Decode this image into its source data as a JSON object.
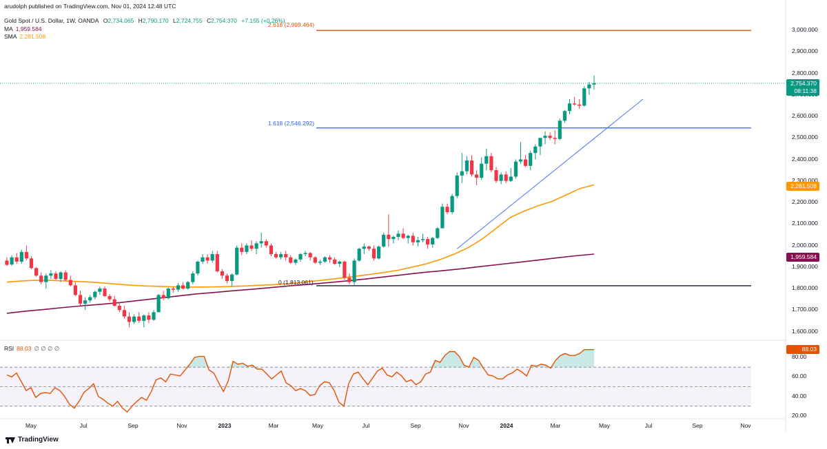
{
  "publisher": "arudolph published on TradingView.com, Nov 01, 2024 12:48 UTC",
  "symbol": {
    "name": "Gold Spot / U.S. Dollar, 1W, OANDA",
    "open_label": "O",
    "open": "2,734.065",
    "high_label": "H",
    "high": "2,790.170",
    "low_label": "L",
    "low": "2,724.755",
    "close_label": "C",
    "close": "2,754.370",
    "change": "+7.155 (+0.26%)"
  },
  "indicators": {
    "ma_label": "MA",
    "ma_value": "1,959.584",
    "sma_label": "SMA",
    "sma_value": "2,281.508",
    "rsi_label": "RSI",
    "rsi_value": "88.03",
    "rsi_extra": "∅ ∅ ∅ ∅"
  },
  "fib_levels": [
    {
      "label": "2.618 (2,999.464)",
      "value": 2999.464
    },
    {
      "label": "1.618 (2,546.292)",
      "value": 2546.292
    },
    {
      "label": "0 (1,813.061)",
      "value": 1813.061
    }
  ],
  "price_tags": {
    "last_price": "2,754.370",
    "countdown": "08:11:38",
    "sma": "2,281.508",
    "ma": "1,959.584",
    "rsi": "88.03"
  },
  "y_ticks": [
    "3,000.000",
    "2,900.000",
    "2,800.000",
    "2,700.000",
    "2,600.000",
    "2,500.000",
    "2,400.000",
    "2,300.000",
    "2,200.000",
    "2,100.000",
    "2,000.000",
    "1,900.000",
    "1,800.000",
    "1,700.000",
    "1,600.000"
  ],
  "rsi_ticks": [
    "80.00",
    "60.00",
    "40.00",
    "20.00"
  ],
  "x_ticks": [
    "May",
    "Jul",
    "Sep",
    "Nov",
    "2023",
    "Mar",
    "May",
    "Jul",
    "Sep",
    "Nov",
    "2024",
    "Mar",
    "May",
    "Jul",
    "Sep",
    "Nov"
  ],
  "footer": "TradingView",
  "colors": {
    "bull": "#089981",
    "bear": "#f23645",
    "ma200": "#880e4f",
    "sma50": "#ff9800",
    "fib_top": "#e65100",
    "fib_mid": "#2962ff",
    "fib_zero": "#131722",
    "rsi": "#e65100",
    "trendline": "#5c7cfa",
    "last_price": "#089981"
  },
  "chart_data": {
    "type": "candlestick",
    "timeframe": "1W",
    "ylim": [
      1580,
      3060
    ],
    "candles_ohlc": [
      [
        1930,
        1945,
        1905,
        1910
      ],
      [
        1912,
        1955,
        1905,
        1945
      ],
      [
        1945,
        1965,
        1915,
        1925
      ],
      [
        1925,
        1980,
        1915,
        1970
      ],
      [
        1970,
        2000,
        1930,
        1940
      ],
      [
        1940,
        1950,
        1890,
        1895
      ],
      [
        1895,
        1900,
        1855,
        1860
      ],
      [
        1860,
        1875,
        1820,
        1830
      ],
      [
        1830,
        1870,
        1800,
        1860
      ],
      [
        1860,
        1885,
        1845,
        1870
      ],
      [
        1870,
        1880,
        1840,
        1845
      ],
      [
        1845,
        1880,
        1830,
        1875
      ],
      [
        1875,
        1885,
        1835,
        1840
      ],
      [
        1840,
        1860,
        1810,
        1815
      ],
      [
        1815,
        1830,
        1765,
        1770
      ],
      [
        1770,
        1790,
        1720,
        1730
      ],
      [
        1730,
        1760,
        1700,
        1745
      ],
      [
        1745,
        1770,
        1735,
        1760
      ],
      [
        1760,
        1790,
        1750,
        1785
      ],
      [
        1785,
        1810,
        1770,
        1800
      ],
      [
        1800,
        1810,
        1760,
        1765
      ],
      [
        1765,
        1775,
        1740,
        1750
      ],
      [
        1750,
        1765,
        1715,
        1720
      ],
      [
        1720,
        1735,
        1690,
        1700
      ],
      [
        1700,
        1720,
        1660,
        1670
      ],
      [
        1670,
        1690,
        1620,
        1645
      ],
      [
        1645,
        1680,
        1635,
        1670
      ],
      [
        1670,
        1690,
        1640,
        1650
      ],
      [
        1650,
        1680,
        1620,
        1675
      ],
      [
        1675,
        1690,
        1640,
        1655
      ],
      [
        1655,
        1700,
        1650,
        1690
      ],
      [
        1690,
        1775,
        1690,
        1770
      ],
      [
        1770,
        1790,
        1745,
        1755
      ],
      [
        1755,
        1805,
        1750,
        1800
      ],
      [
        1800,
        1810,
        1780,
        1795
      ],
      [
        1795,
        1825,
        1785,
        1815
      ],
      [
        1815,
        1830,
        1795,
        1800
      ],
      [
        1800,
        1835,
        1795,
        1830
      ],
      [
        1830,
        1880,
        1820,
        1870
      ],
      [
        1870,
        1930,
        1860,
        1925
      ],
      [
        1925,
        1960,
        1915,
        1945
      ],
      [
        1945,
        1960,
        1915,
        1930
      ],
      [
        1930,
        1975,
        1920,
        1960
      ],
      [
        1960,
        1975,
        1875,
        1880
      ],
      [
        1880,
        1890,
        1845,
        1860
      ],
      [
        1860,
        1870,
        1825,
        1835
      ],
      [
        1835,
        1870,
        1810,
        1865
      ],
      [
        1865,
        2000,
        1860,
        1990
      ],
      [
        1990,
        2010,
        1955,
        1970
      ],
      [
        1970,
        2010,
        1960,
        2000
      ],
      [
        2000,
        2025,
        1975,
        1985
      ],
      [
        1985,
        2020,
        1960,
        2010
      ],
      [
        2010,
        2060,
        1990,
        2020
      ],
      [
        2020,
        2030,
        1990,
        2000
      ],
      [
        2000,
        2010,
        1950,
        1960
      ],
      [
        1960,
        1970,
        1940,
        1945
      ],
      [
        1945,
        1970,
        1935,
        1960
      ],
      [
        1960,
        1975,
        1930,
        1945
      ],
      [
        1945,
        1955,
        1915,
        1920
      ],
      [
        1920,
        1940,
        1910,
        1935
      ],
      [
        1935,
        1965,
        1925,
        1960
      ],
      [
        1960,
        1975,
        1950,
        1965
      ],
      [
        1965,
        1970,
        1930,
        1945
      ],
      [
        1945,
        1950,
        1915,
        1920
      ],
      [
        1920,
        1935,
        1910,
        1925
      ],
      [
        1925,
        1950,
        1920,
        1945
      ],
      [
        1945,
        1955,
        1920,
        1935
      ],
      [
        1935,
        1945,
        1910,
        1915
      ],
      [
        1915,
        1930,
        1900,
        1925
      ],
      [
        1925,
        1930,
        1840,
        1850
      ],
      [
        1850,
        1870,
        1820,
        1830
      ],
      [
        1830,
        1940,
        1810,
        1930
      ],
      [
        1930,
        1990,
        1925,
        1985
      ],
      [
        1985,
        2010,
        1960,
        1995
      ],
      [
        1995,
        2000,
        1975,
        1985
      ],
      [
        1985,
        2000,
        1930,
        1940
      ],
      [
        1940,
        2000,
        1935,
        1995
      ],
      [
        1995,
        2060,
        1990,
        2050
      ],
      [
        2050,
        2145,
        1995,
        2030
      ],
      [
        2030,
        2045,
        2010,
        2040
      ],
      [
        2040,
        2070,
        2025,
        2055
      ],
      [
        2055,
        2080,
        2030,
        2035
      ],
      [
        2035,
        2050,
        2010,
        2045
      ],
      [
        2045,
        2060,
        2000,
        2015
      ],
      [
        2015,
        2040,
        1995,
        2025
      ],
      [
        2025,
        2055,
        2015,
        2030
      ],
      [
        2030,
        2040,
        1985,
        2005
      ],
      [
        2005,
        2040,
        1990,
        2035
      ],
      [
        2035,
        2085,
        2030,
        2080
      ],
      [
        2080,
        2195,
        2080,
        2180
      ],
      [
        2180,
        2195,
        2145,
        2155
      ],
      [
        2155,
        2240,
        2145,
        2230
      ],
      [
        2230,
        2340,
        2220,
        2325
      ],
      [
        2325,
        2430,
        2290,
        2345
      ],
      [
        2345,
        2415,
        2330,
        2395
      ],
      [
        2395,
        2420,
        2320,
        2330
      ],
      [
        2330,
        2350,
        2280,
        2315
      ],
      [
        2315,
        2410,
        2305,
        2380
      ],
      [
        2380,
        2450,
        2350,
        2415
      ],
      [
        2415,
        2430,
        2340,
        2350
      ],
      [
        2350,
        2365,
        2290,
        2300
      ],
      [
        2300,
        2340,
        2285,
        2330
      ],
      [
        2330,
        2345,
        2290,
        2300
      ],
      [
        2300,
        2360,
        2295,
        2320
      ],
      [
        2320,
        2400,
        2310,
        2390
      ],
      [
        2390,
        2480,
        2380,
        2400
      ],
      [
        2400,
        2420,
        2365,
        2370
      ],
      [
        2370,
        2440,
        2350,
        2430
      ],
      [
        2430,
        2470,
        2400,
        2460
      ],
      [
        2460,
        2500,
        2420,
        2500
      ],
      [
        2500,
        2530,
        2470,
        2510
      ],
      [
        2510,
        2525,
        2490,
        2500
      ],
      [
        2500,
        2535,
        2470,
        2495
      ],
      [
        2495,
        2590,
        2490,
        2580
      ],
      [
        2580,
        2630,
        2570,
        2625
      ],
      [
        2625,
        2680,
        2610,
        2660
      ],
      [
        2660,
        2690,
        2650,
        2655
      ],
      [
        2655,
        2680,
        2635,
        2650
      ],
      [
        2650,
        2740,
        2645,
        2730
      ],
      [
        2730,
        2760,
        2700,
        2748
      ],
      [
        2748,
        2790,
        2724,
        2754
      ]
    ],
    "sma_50": [
      1830,
      1835,
      1838,
      1838,
      1836,
      1833,
      1830,
      1825,
      1820,
      1815,
      1812,
      1810,
      1808,
      1806,
      1807,
      1808,
      1810,
      1812,
      1815,
      1818,
      1822,
      1828,
      1835,
      1842,
      1850,
      1858,
      1866,
      1875,
      1885,
      1900,
      1915,
      1935,
      1960,
      1990,
      2030,
      2080,
      2130,
      2160,
      2185,
      2205,
      2235,
      2265,
      2282
    ],
    "ma_200": [
      1685,
      1695,
      1703,
      1712,
      1720,
      1727,
      1735,
      1745,
      1755,
      1765,
      1775,
      1782,
      1790,
      1797,
      1805,
      1813,
      1820,
      1828,
      1836,
      1845,
      1855,
      1865,
      1875,
      1883,
      1892,
      1902,
      1912,
      1922,
      1932,
      1942,
      1952,
      1960
    ],
    "rsi": [
      62,
      60,
      64,
      55,
      46,
      49,
      39,
      43,
      44,
      43,
      49,
      46,
      40,
      32,
      28,
      35,
      44,
      48,
      53,
      40,
      37,
      33,
      30,
      35,
      28,
      24,
      30,
      35,
      39,
      36,
      45,
      57,
      59,
      55,
      63,
      62,
      61,
      67,
      73,
      80,
      81,
      81,
      67,
      64,
      54,
      45,
      56,
      76,
      73,
      74,
      71,
      72,
      68,
      68,
      63,
      58,
      62,
      66,
      54,
      51,
      46,
      48,
      46,
      41,
      42,
      51,
      55,
      54,
      46,
      34,
      30,
      53,
      63,
      65,
      58,
      52,
      59,
      66,
      69,
      62,
      60,
      65,
      61,
      55,
      57,
      52,
      55,
      63,
      65,
      77,
      75,
      82,
      86,
      86,
      81,
      72,
      70,
      80,
      77,
      69,
      62,
      61,
      58,
      58,
      62,
      64,
      68,
      65,
      61,
      72,
      71,
      73,
      72,
      69,
      77,
      82,
      84,
      82,
      82,
      84,
      88,
      88,
      88
    ],
    "trendline": {
      "from_index": 92,
      "from_value": 1985,
      "to_index": 130,
      "to_value": 2680
    }
  }
}
